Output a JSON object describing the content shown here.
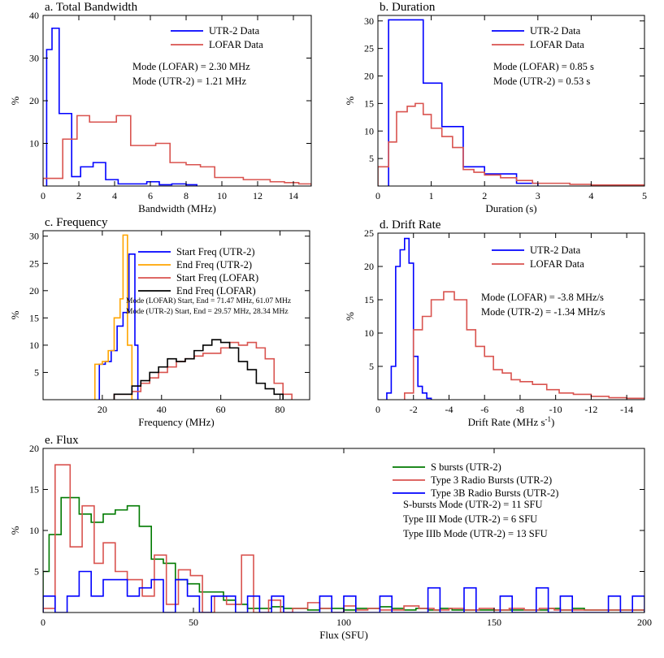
{
  "colors": {
    "blue": "#0000ff",
    "red": "#d9534f",
    "orange": "#ffa500",
    "black": "#000000",
    "green": "#007a00"
  },
  "chart_data": [
    {
      "id": "a",
      "type": "histogram",
      "title": "a. Total Bandwidth",
      "xlabel": "Bandwidth (MHz)",
      "ylabel": "%",
      "xlim": [
        0,
        15
      ],
      "ylim": [
        0,
        40
      ],
      "xticks": [
        0,
        2,
        4,
        6,
        8,
        10,
        12,
        14
      ],
      "xtick_labels": [
        "0",
        "2",
        "4",
        "6",
        "8",
        "10",
        "12",
        "14"
      ],
      "yticks": [
        10,
        20,
        30,
        40
      ],
      "ytick_labels": [
        "10",
        "20",
        "30",
        "40"
      ],
      "series": [
        {
          "name": "UTR-2 Data",
          "color": "blue",
          "edges": [
            0.2,
            0.5,
            0.9,
            1.6,
            2.1,
            2.8,
            3.5,
            4.2,
            5.0,
            5.8,
            6.5,
            7.2,
            8.0,
            8.6
          ],
          "values": [
            32,
            37,
            17,
            2.2,
            4.5,
            5.5,
            1.5,
            0.5,
            0.5,
            1,
            0.3,
            0.5,
            0.3
          ]
        },
        {
          "name": "LOFAR Data",
          "color": "red",
          "edges": [
            0,
            0.3,
            1.1,
            1.9,
            2.6,
            3.3,
            4.1,
            4.9,
            5.6,
            6.3,
            7.1,
            8.0,
            8.8,
            9.6,
            10.4,
            11.2,
            11.9,
            12.7,
            13.5,
            14.3,
            15
          ],
          "values": [
            1.8,
            1.8,
            11,
            16.5,
            15,
            15,
            16.5,
            9.5,
            9.5,
            10,
            5.5,
            5,
            4.5,
            2,
            2,
            1.5,
            1.5,
            1,
            0.8,
            0.5
          ]
        }
      ],
      "legend": [
        {
          "label": "UTR-2 Data",
          "color": "blue"
        },
        {
          "label": "LOFAR Data",
          "color": "red"
        }
      ],
      "annotations": [
        "Mode (LOFAR) = 2.30 MHz",
        "Mode (UTR-2) = 1.21 MHz"
      ]
    },
    {
      "id": "b",
      "type": "histogram",
      "title": "b. Duration",
      "xlabel": "Duration (s)",
      "ylabel": "%",
      "xlim": [
        0,
        5
      ],
      "ylim": [
        0,
        31
      ],
      "xticks": [
        0,
        1,
        2,
        3,
        4,
        5
      ],
      "xtick_labels": [
        "0",
        "1",
        "2",
        "3",
        "4",
        "5"
      ],
      "yticks": [
        5,
        10,
        15,
        20,
        25,
        30
      ],
      "ytick_labels": [
        "5",
        "10",
        "15",
        "20",
        "25",
        "30"
      ],
      "series": [
        {
          "name": "UTR-2 Data",
          "color": "blue",
          "edges": [
            0.2,
            0.85,
            1.2,
            1.6,
            2.0,
            2.6,
            3.0
          ],
          "values": [
            30.2,
            18.7,
            10.8,
            3.5,
            2.2,
            0.5
          ]
        },
        {
          "name": "LOFAR Data",
          "color": "red",
          "edges": [
            0,
            0.2,
            0.35,
            0.55,
            0.7,
            0.85,
            1.0,
            1.2,
            1.4,
            1.6,
            1.8,
            2.0,
            2.3,
            2.6,
            2.9,
            3.2,
            3.6,
            4.0,
            4.5,
            5.0
          ],
          "values": [
            3.5,
            8,
            13.5,
            14.5,
            15,
            13,
            10.5,
            9,
            7,
            3,
            2.5,
            2,
            1.5,
            1,
            0.5,
            0.5,
            0.3,
            0.2,
            0.2
          ]
        }
      ],
      "legend": [
        {
          "label": "UTR-2 Data",
          "color": "blue"
        },
        {
          "label": "LOFAR Data",
          "color": "red"
        }
      ],
      "annotations": [
        "Mode (LOFAR) = 0.85 s",
        "Mode (UTR-2) = 0.53 s"
      ]
    },
    {
      "id": "c",
      "type": "histogram",
      "title": "c. Frequency",
      "xlabel": "Frequency (MHz)",
      "ylabel": "%",
      "xlim": [
        0,
        90
      ],
      "ylim": [
        0,
        31
      ],
      "xticks": [
        20,
        40,
        60,
        80
      ],
      "xtick_labels": [
        "20",
        "40",
        "60",
        "80"
      ],
      "yticks": [
        5,
        10,
        15,
        20,
        25,
        30
      ],
      "ytick_labels": [
        "5",
        "10",
        "15",
        "20",
        "25",
        "30"
      ],
      "series": [
        {
          "name": "Start Freq (UTR-2)",
          "color": "blue",
          "edges": [
            19,
            21,
            23,
            25,
            27,
            29,
            31,
            32
          ],
          "values": [
            6.5,
            7,
            9,
            13.5,
            16,
            26.7,
            10
          ]
        },
        {
          "name": "End Freq (UTR-2)",
          "color": "orange",
          "edges": [
            17.5,
            20,
            22,
            24,
            26,
            27,
            28.5,
            30
          ],
          "values": [
            6.5,
            7,
            9,
            15,
            18.5,
            30.2,
            10
          ]
        },
        {
          "name": "Start Freq (LOFAR)",
          "color": "red",
          "edges": [
            24,
            30,
            33,
            36,
            39,
            42,
            45,
            48,
            51,
            54,
            57,
            60,
            63,
            66,
            69,
            72,
            75,
            78,
            81,
            84
          ],
          "values": [
            1,
            1.5,
            3,
            4,
            5,
            6,
            7,
            7.5,
            8,
            8.5,
            8.5,
            9.5,
            10.5,
            10,
            10.5,
            9.5,
            7.5,
            3,
            1
          ]
        },
        {
          "name": "End Freq (LOFAR)",
          "color": "black",
          "edges": [
            24,
            30,
            33,
            36,
            39,
            42,
            45,
            48,
            51,
            54,
            57,
            60,
            63,
            66,
            69,
            72,
            75,
            78,
            81
          ],
          "values": [
            1,
            2.5,
            3.5,
            5,
            6,
            7.5,
            7,
            7.5,
            9,
            10,
            11,
            10.5,
            9.5,
            7,
            5.5,
            3,
            2,
            1
          ]
        }
      ],
      "legend": [
        {
          "label": "Start Freq (UTR-2)",
          "color": "blue"
        },
        {
          "label": "End Freq (UTR-2)",
          "color": "orange"
        },
        {
          "label": "Start Freq (LOFAR)",
          "color": "red"
        },
        {
          "label": "End Freq (LOFAR)",
          "color": "black"
        }
      ],
      "annotations": [
        "Mode (LOFAR) Start, End = 71.47 MHz, 61.07 MHz",
        "Mode (UTR-2) Start, End = 29.57 MHz, 28.34 MHz"
      ]
    },
    {
      "id": "d",
      "type": "histogram",
      "title": "d. Drift Rate",
      "xlabel": "Drift Rate (MHz s",
      "xlabel_sup": "-1",
      "xlabel_end": ")",
      "ylabel": "%",
      "xlim": [
        0,
        -15
      ],
      "ylim": [
        0,
        25
      ],
      "xticks": [
        0,
        -2,
        -4,
        -6,
        -8,
        -10,
        -12,
        -14
      ],
      "xtick_labels": [
        "0",
        "-2",
        "-4",
        "-6",
        "-8",
        "-10",
        "-12",
        "-14"
      ],
      "yticks": [
        5,
        10,
        15,
        20,
        25
      ],
      "ytick_labels": [
        "5",
        "10",
        "15",
        "20",
        "25"
      ],
      "series": [
        {
          "name": "UTR-2 Data",
          "color": "blue",
          "edges": [
            -0.5,
            -0.75,
            -1.0,
            -1.25,
            -1.5,
            -1.75,
            -2.0,
            -2.25,
            -2.5,
            -2.75,
            -3.0
          ],
          "values": [
            1,
            5,
            20,
            22.5,
            24.2,
            20.5,
            6.5,
            2,
            1,
            0.2
          ]
        },
        {
          "name": "LOFAR Data",
          "color": "red",
          "edges": [
            -1.5,
            -2.0,
            -2.5,
            -3.0,
            -3.7,
            -4.3,
            -5.0,
            -5.5,
            -6.0,
            -6.5,
            -7.0,
            -7.5,
            -8.0,
            -8.7,
            -9.5,
            -10.2,
            -11.0,
            -12.0,
            -13.0,
            -14.0,
            -15
          ],
          "values": [
            1,
            10.5,
            12.5,
            15,
            16.2,
            15,
            10.5,
            8,
            6.5,
            4.5,
            4,
            3,
            2.7,
            2.3,
            1.5,
            1,
            0.8,
            0.5,
            0.3,
            0.2
          ]
        }
      ],
      "legend": [
        {
          "label": "UTR-2 Data",
          "color": "blue"
        },
        {
          "label": "LOFAR Data",
          "color": "red"
        }
      ],
      "annotations": [
        "Mode (LOFAR) = -3.8 MHz/s",
        "Mode (UTR-2) = -1.34 MHz/s"
      ]
    },
    {
      "id": "e",
      "type": "histogram",
      "title": "e. Flux",
      "xlabel": "Flux  (SFU)",
      "ylabel": "%",
      "xlim": [
        0,
        200
      ],
      "ylim": [
        0,
        20
      ],
      "xticks": [
        0,
        50,
        100,
        150,
        200
      ],
      "xtick_labels": [
        "0",
        "50",
        "100",
        "150",
        "200"
      ],
      "yticks": [
        5,
        10,
        15,
        20
      ],
      "ytick_labels": [
        "5",
        "10",
        "15",
        "20"
      ],
      "series": [
        {
          "name": "S bursts (UTR-2)",
          "color": "green",
          "edges": [
            0,
            2,
            6,
            12,
            16,
            20,
            24,
            28,
            32,
            36,
            40,
            44,
            48,
            52,
            56,
            60,
            64,
            68,
            72,
            76,
            80,
            84,
            88,
            92,
            96,
            100,
            104,
            108,
            112,
            116,
            120,
            124,
            128,
            132,
            136,
            140,
            144,
            148,
            152,
            156,
            160,
            164,
            168,
            172,
            176,
            180,
            184,
            188,
            192,
            196,
            200
          ],
          "values": [
            5,
            9.5,
            14,
            12,
            11,
            12,
            12.5,
            13,
            10.5,
            6.5,
            6,
            4,
            3.5,
            2.5,
            2.5,
            1.5,
            1,
            0.5,
            0.5,
            0.7,
            0.5,
            0.5,
            0.3,
            0.5,
            0.5,
            0.3,
            0.5,
            0.5,
            0.7,
            0.5,
            0.3,
            0.5,
            0.3,
            0.5,
            0.3,
            0.3,
            0.3,
            0.3,
            0.3,
            0.3,
            0.3,
            0.3,
            0.5,
            0.3,
            0.5,
            0.3,
            0.3,
            0.3,
            0.3,
            0.3
          ]
        },
        {
          "name": "Type 3 Radio Bursts (UTR-2)",
          "color": "red",
          "edges": [
            0,
            4,
            9,
            13,
            17,
            20,
            24,
            28,
            33,
            37,
            41,
            45,
            49,
            53,
            57,
            61,
            66,
            70,
            75,
            79,
            83,
            88,
            92,
            96,
            100,
            104,
            108,
            112,
            116,
            120,
            125,
            130,
            135,
            140,
            145,
            150,
            155,
            160,
            165,
            170,
            175,
            180,
            185,
            190,
            195,
            200
          ],
          "values": [
            0.5,
            18,
            8,
            13,
            6,
            8.5,
            5,
            4,
            2,
            7,
            1,
            5.2,
            4.5,
            0,
            2,
            1,
            7,
            0,
            1.5,
            0,
            0.5,
            1.2,
            0.5,
            0,
            0.8,
            0.3,
            0.5,
            0.3,
            0.3,
            0.8,
            0.5,
            0.3,
            0.5,
            0.3,
            0.5,
            0.3,
            0.5,
            0.3,
            0.5,
            0.3,
            0.3,
            0.3,
            0.3,
            0.3,
            0.3
          ]
        },
        {
          "name": "Type 3B Radio Bursts (UTR-2)",
          "color": "blue",
          "edges": [
            0,
            4,
            8,
            12,
            16,
            20,
            24,
            28,
            32,
            36,
            40,
            44,
            48,
            52,
            56,
            60,
            64,
            68,
            72,
            76,
            80,
            84,
            88,
            92,
            96,
            100,
            104,
            108,
            112,
            116,
            120,
            124,
            128,
            132,
            136,
            140,
            144,
            148,
            152,
            156,
            160,
            164,
            168,
            172,
            176,
            180,
            184,
            188,
            192,
            196,
            200
          ],
          "values": [
            2,
            0,
            2,
            5,
            2,
            4,
            4,
            2,
            3,
            4,
            0,
            4,
            2,
            0,
            2,
            2,
            0,
            2,
            0,
            2,
            0,
            0,
            0,
            2,
            0,
            2,
            0,
            0,
            2,
            0,
            0,
            0,
            3,
            0,
            0,
            3,
            0,
            0,
            2,
            0,
            0,
            3,
            0,
            2,
            0,
            0,
            0,
            2,
            0,
            2
          ]
        }
      ],
      "legend": [
        {
          "label": "S bursts (UTR-2)",
          "color": "green"
        },
        {
          "label": "Type 3 Radio Bursts (UTR-2)",
          "color": "red"
        },
        {
          "label": "Type 3B Radio Bursts (UTR-2)",
          "color": "blue"
        }
      ],
      "annotations": [
        "S-bursts Mode (UTR-2) = 11 SFU",
        "Type III Mode (UTR-2) = 6 SFU",
        "Type IIIb Mode (UTR-2) = 13 SFU"
      ]
    }
  ]
}
